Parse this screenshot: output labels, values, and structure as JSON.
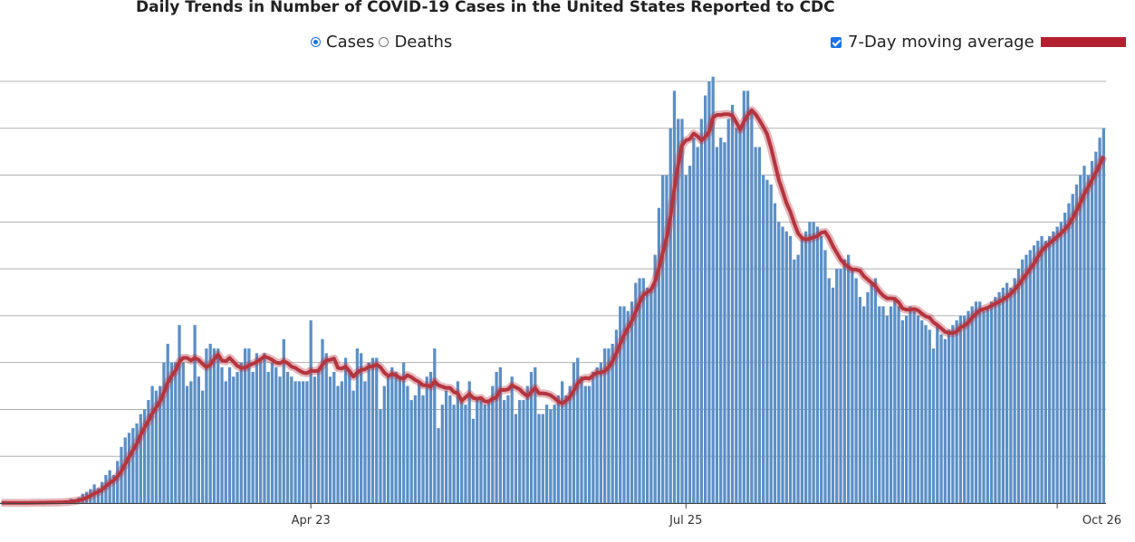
{
  "header": {
    "title": "Daily Trends in Number of COVID-19 Cases in the United States Reported to CDC"
  },
  "controls": {
    "metric_options": [
      {
        "label": "Cases",
        "selected": true
      },
      {
        "label": "Deaths",
        "selected": false
      }
    ],
    "moving_average": {
      "label": "7-Day moving average",
      "checked": true,
      "color": "#b22030"
    }
  },
  "colors": {
    "bar": "#5b8fc6",
    "average_line": "#b5353f",
    "gridline": "#b0b0b0",
    "checkbox": "#1a73e8"
  },
  "chart_data": {
    "type": "bar",
    "title": "Daily Trends in Number of COVID-19 Cases in the United States Reported to CDC",
    "xlabel": "",
    "ylabel": "",
    "x_ticks": [
      "Apr 23",
      "Jul 25",
      "Oct 26"
    ],
    "x_tick_index": [
      80,
      177,
      273
    ],
    "ylim": [
      0,
      90000
    ],
    "grid": true,
    "legend": "top-right",
    "start_index": 0,
    "values": [
      30,
      40,
      40,
      50,
      60,
      70,
      80,
      90,
      100,
      110,
      120,
      140,
      160,
      180,
      200,
      250,
      300,
      400,
      900,
      800,
      1200,
      2000,
      2400,
      3000,
      4000,
      3200,
      4500,
      6000,
      7000,
      6000,
      9000,
      12000,
      14000,
      15000,
      16000,
      17000,
      19000,
      20000,
      22000,
      25000,
      24000,
      25000,
      30000,
      34000,
      30000,
      30000,
      38000,
      30000,
      25000,
      26000,
      38000,
      27000,
      24000,
      33000,
      34000,
      33000,
      33000,
      29000,
      26000,
      29000,
      27000,
      28000,
      30000,
      33000,
      33000,
      28000,
      32000,
      31000,
      32000,
      28000,
      30000,
      29000,
      27000,
      35000,
      28000,
      27000,
      26000,
      26000,
      26000,
      26000,
      39000,
      27000,
      28000,
      35000,
      32000,
      27000,
      28000,
      25000,
      26000,
      31000,
      28000,
      24000,
      33000,
      32000,
      26000,
      30000,
      31000,
      31000,
      20000,
      25000,
      27000,
      29000,
      28000,
      27000,
      30000,
      25000,
      22000,
      23000,
      26000,
      23000,
      27000,
      28000,
      33000,
      16000,
      21000,
      24000,
      23000,
      21000,
      26000,
      22000,
      21000,
      26000,
      18000,
      22000,
      22000,
      21000,
      22000,
      25000,
      28000,
      29000,
      22000,
      23000,
      27000,
      19000,
      22000,
      22000,
      25000,
      28000,
      29000,
      19000,
      19000,
      21000,
      20000,
      21000,
      23000,
      26000,
      23000,
      25000,
      30000,
      31000,
      27000,
      25000,
      25000,
      28000,
      29000,
      30000,
      33000,
      33000,
      34000,
      37000,
      42000,
      42000,
      41000,
      43000,
      47000,
      48000,
      48000,
      46000,
      46000,
      53000,
      63000,
      70000,
      70000,
      80000,
      88000,
      82000,
      82000,
      70000,
      72000,
      78000,
      76000,
      82000,
      87000,
      90000,
      91000,
      76000,
      78000,
      77000,
      82000,
      85000,
      80000,
      80000,
      88000,
      88000,
      84000,
      76000,
      76000,
      70000,
      69000,
      68000,
      64000,
      60000,
      59000,
      58000,
      57000,
      52000,
      53000,
      57000,
      58000,
      60000,
      60000,
      59000,
      57000,
      54000,
      48000,
      46000,
      50000,
      50000,
      52000,
      53000,
      50000,
      48000,
      44000,
      42000,
      45000,
      47000,
      48000,
      42000,
      42000,
      40000,
      42000,
      44000,
      42000,
      39000,
      40000,
      42000,
      41000,
      40000,
      39000,
      38000,
      37000,
      33000,
      38000,
      36000,
      35000,
      37000,
      38000,
      39000,
      40000,
      40000,
      41000,
      42000,
      43000,
      43000,
      41000,
      42000,
      43000,
      44000,
      45000,
      46000,
      47000,
      46000,
      48000,
      50000,
      52000,
      53000,
      54000,
      55000,
      56000,
      57000,
      56000,
      57000,
      58000,
      59000,
      60000,
      62000,
      64000,
      66000,
      68000,
      70000,
      72000,
      70000,
      73000,
      75000,
      78000,
      80000
    ],
    "series": [
      {
        "name": "7-Day moving average"
      }
    ]
  }
}
